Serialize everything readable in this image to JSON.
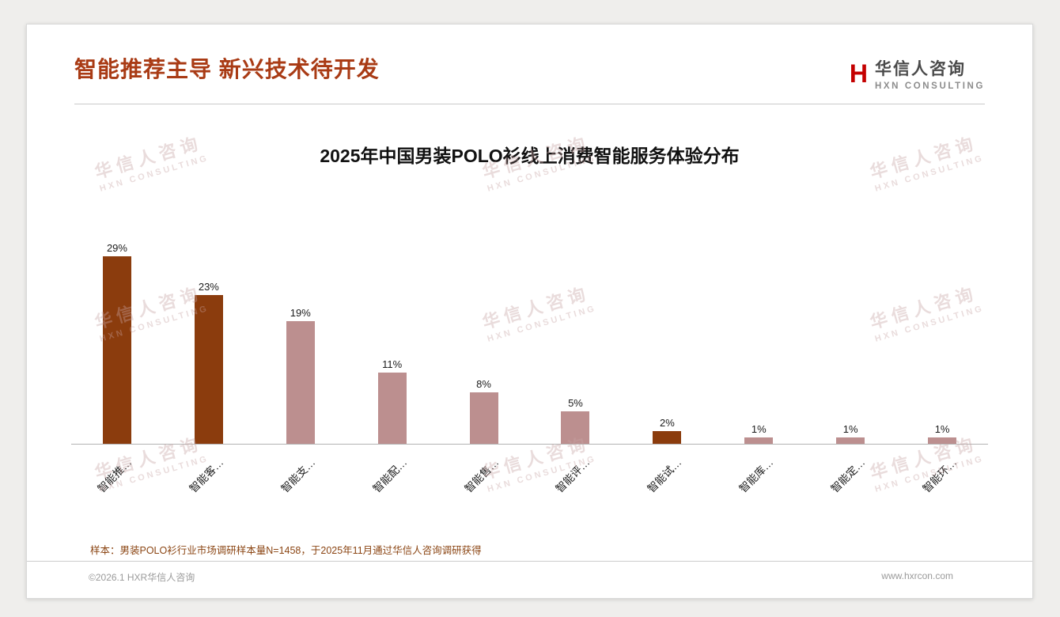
{
  "header": {
    "title": "智能推荐主导 新兴技术待开发",
    "logo": {
      "mark": "H",
      "name": "华信人咨询",
      "subtitle": "HXN CONSULTING"
    }
  },
  "watermark": {
    "line1": "华信人咨询",
    "line2": "HXN CONSULTING"
  },
  "chart_data": {
    "type": "bar",
    "title": "2025年中国男装POLO衫线上消费智能服务体验分布",
    "categories": [
      "智能推…",
      "智能客…",
      "智能支…",
      "智能配…",
      "智能售…",
      "智能评…",
      "智能试…",
      "智能库…",
      "智能定…",
      "智能环…"
    ],
    "values": [
      29,
      23,
      19,
      11,
      8,
      5,
      2,
      1,
      1,
      1
    ],
    "value_labels": [
      "29%",
      "23%",
      "19%",
      "11%",
      "8%",
      "5%",
      "2%",
      "1%",
      "1%",
      "1%"
    ],
    "bar_colors": [
      "#8b3c0d",
      "#8b3c0d",
      "#bc8f8f",
      "#bc8f8f",
      "#bc8f8f",
      "#bc8f8f",
      "#8b3c0d",
      "#bc8f8f",
      "#bc8f8f",
      "#bc8f8f"
    ],
    "xlabel": "",
    "ylabel": "",
    "ylim": [
      0,
      32
    ],
    "grid": false,
    "legend": false
  },
  "footnote": "样本：男装POLO衫行业市场调研样本量N=1458，于2025年11月通过华信人咨询调研获得",
  "footer": {
    "copyright": "©2026.1 HXR华信人咨询",
    "website": "www.hxrcon.com"
  },
  "colors": {
    "title_accent": "#a93b15",
    "bar_dark": "#8b3c0d",
    "bar_light": "#bc8f8f",
    "footnote_brown": "#8b4513",
    "logo_red": "#c40000"
  }
}
